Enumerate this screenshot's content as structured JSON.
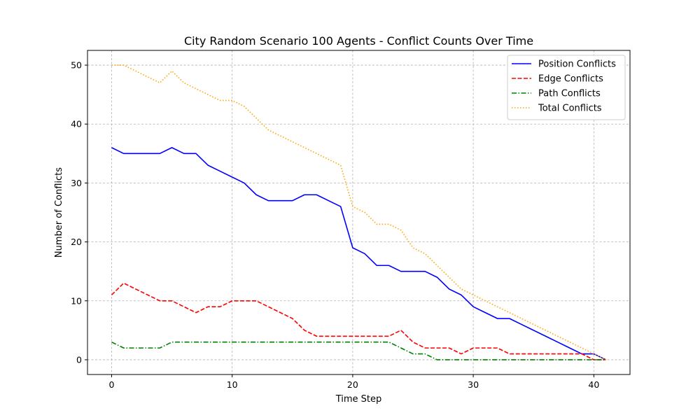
{
  "chart_data": {
    "type": "line",
    "title": "City Random Scenario 100 Agents - Conflict Counts Over Time",
    "xlabel": "Time Step",
    "ylabel": "Number of Conflicts",
    "xlim": [
      -2,
      43
    ],
    "ylim": [
      -2.5,
      52.5
    ],
    "xticks": [
      0,
      10,
      20,
      30,
      40
    ],
    "yticks": [
      0,
      10,
      20,
      30,
      40,
      50
    ],
    "grid": true,
    "legend_position": "top-right",
    "x": [
      0,
      1,
      2,
      3,
      4,
      5,
      6,
      7,
      8,
      9,
      10,
      11,
      12,
      13,
      14,
      15,
      16,
      17,
      18,
      19,
      20,
      21,
      22,
      23,
      24,
      25,
      26,
      27,
      28,
      29,
      30,
      31,
      32,
      33,
      34,
      35,
      36,
      37,
      38,
      39,
      40,
      41
    ],
    "series": [
      {
        "name": "Position Conflicts",
        "color": "#0000ff",
        "dash": "solid",
        "values": [
          36,
          35,
          35,
          35,
          35,
          36,
          35,
          35,
          33,
          32,
          31,
          30,
          28,
          27,
          27,
          27,
          28,
          28,
          27,
          26,
          19,
          18,
          16,
          16,
          15,
          15,
          15,
          14,
          12,
          11,
          9,
          8,
          7,
          7,
          6,
          5,
          4,
          3,
          2,
          1,
          1,
          0
        ]
      },
      {
        "name": "Edge Conflicts",
        "color": "#ff0000",
        "dash": "dashed",
        "values": [
          11,
          13,
          12,
          11,
          10,
          10,
          9,
          8,
          9,
          9,
          10,
          10,
          10,
          9,
          8,
          7,
          5,
          4,
          4,
          4,
          4,
          4,
          4,
          4,
          5,
          3,
          2,
          2,
          2,
          1,
          2,
          2,
          2,
          1,
          1,
          1,
          1,
          1,
          1,
          1,
          0,
          0
        ]
      },
      {
        "name": "Path Conflicts",
        "color": "#008000",
        "dash": "dashdot",
        "values": [
          3,
          2,
          2,
          2,
          2,
          3,
          3,
          3,
          3,
          3,
          3,
          3,
          3,
          3,
          3,
          3,
          3,
          3,
          3,
          3,
          3,
          3,
          3,
          3,
          2,
          1,
          1,
          0,
          0,
          0,
          0,
          0,
          0,
          0,
          0,
          0,
          0,
          0,
          0,
          0,
          0,
          0
        ]
      },
      {
        "name": "Total Conflicts",
        "color": "#ffa500",
        "dash": "dotted",
        "values": [
          50,
          50,
          49,
          48,
          47,
          49,
          47,
          46,
          45,
          44,
          44,
          43,
          41,
          39,
          38,
          37,
          36,
          35,
          34,
          33,
          26,
          25,
          23,
          23,
          22,
          19,
          18,
          16,
          14,
          12,
          11,
          10,
          9,
          8,
          7,
          6,
          5,
          4,
          3,
          2,
          1,
          0
        ]
      }
    ]
  }
}
